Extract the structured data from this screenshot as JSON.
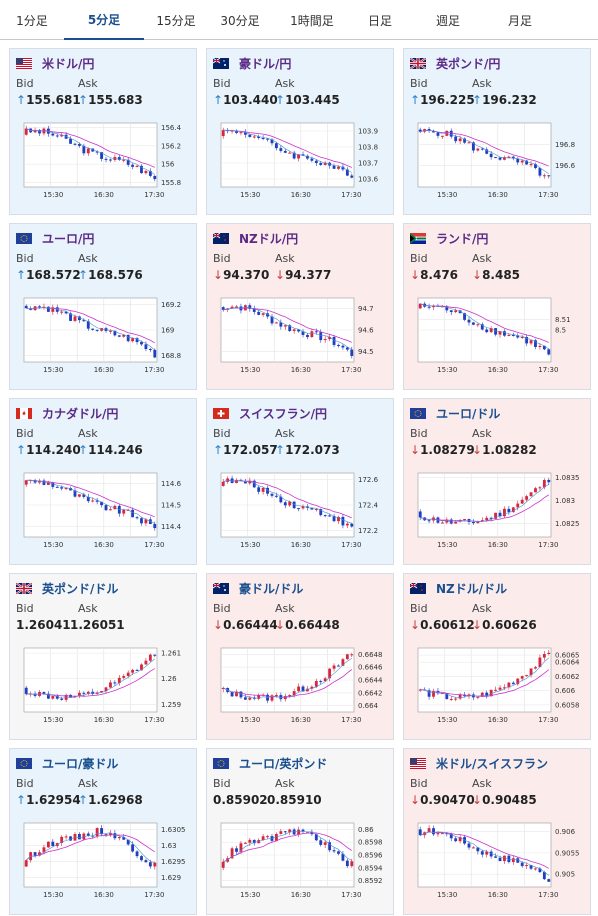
{
  "tabs": [
    {
      "label": "1分足",
      "active": false
    },
    {
      "label": "5分足",
      "active": true
    },
    {
      "label": "15分足",
      "active": false
    },
    {
      "label": "30分足",
      "active": false
    },
    {
      "label": "1時間足",
      "active": false
    },
    {
      "label": "日足",
      "active": false
    },
    {
      "label": "週足",
      "active": false
    },
    {
      "label": "月足",
      "active": false
    }
  ],
  "labels": {
    "bid": "Bid",
    "ask": "Ask"
  },
  "colors": {
    "up_bg": "#e8f3fb",
    "down_bg": "#fbeceb",
    "up_arrow": "#2a7fc9",
    "down_arrow": "#c93a3a",
    "bull_candle": "#d7263d",
    "bear_candle": "#1f3fbf",
    "ma_line": "#cc33cc"
  },
  "cards": [
    {
      "name": "米ドル/円",
      "flag": "us",
      "title_color": "purple",
      "trend": "up",
      "bid": "155.681",
      "ask": "155.683",
      "chart": {
        "x_ticks": [
          "15:30",
          "16:30",
          "17:30"
        ],
        "y_ticks": [
          "156.4",
          "156.2",
          "156",
          "155.8"
        ],
        "ylim": [
          155.75,
          156.45
        ],
        "shape": "down"
      }
    },
    {
      "name": "豪ドル/円",
      "flag": "au",
      "title_color": "purple",
      "trend": "up",
      "bid": "103.440",
      "ask": "103.445",
      "chart": {
        "x_ticks": [
          "15:30",
          "16:30",
          "17:30"
        ],
        "y_ticks": [
          "103.9",
          "103.8",
          "103.7",
          "103.6"
        ],
        "ylim": [
          103.55,
          103.95
        ],
        "shape": "down"
      }
    },
    {
      "name": "英ポンド/円",
      "flag": "gb",
      "title_color": "purple",
      "trend": "up",
      "bid": "196.225",
      "ask": "196.232",
      "chart": {
        "x_ticks": [
          "15:30",
          "16:30",
          "17:30"
        ],
        "y_ticks": [
          "196.8",
          "196.6"
        ],
        "ylim": [
          196.4,
          197.0
        ],
        "shape": "down"
      }
    },
    {
      "name": "ユーロ/円",
      "flag": "eu",
      "title_color": "purple",
      "trend": "up",
      "bid": "168.572",
      "ask": "168.576",
      "chart": {
        "x_ticks": [
          "15:30",
          "16:30",
          "17:30"
        ],
        "y_ticks": [
          "169.2",
          "169",
          "168.8"
        ],
        "ylim": [
          168.75,
          169.25
        ],
        "shape": "down"
      }
    },
    {
      "name": "NZドル/円",
      "flag": "nz",
      "title_color": "purple",
      "trend": "down",
      "bid": "94.370",
      "ask": "94.377",
      "chart": {
        "x_ticks": [
          "15:30",
          "16:30",
          "17:30"
        ],
        "y_ticks": [
          "94.7",
          "94.6",
          "94.5"
        ],
        "ylim": [
          94.45,
          94.75
        ],
        "shape": "down"
      }
    },
    {
      "name": "ランド/円",
      "flag": "za",
      "title_color": "purple",
      "trend": "down",
      "bid": "8.476",
      "ask": "8.485",
      "chart": {
        "x_ticks": [
          "15:30",
          "16:30",
          "17:30"
        ],
        "y_ticks": [
          "8.51",
          "8.5"
        ],
        "ylim": [
          8.47,
          8.53
        ],
        "shape": "down"
      }
    },
    {
      "name": "カナダドル/円",
      "flag": "ca",
      "title_color": "purple",
      "trend": "up",
      "bid": "114.240",
      "ask": "114.246",
      "chart": {
        "x_ticks": [
          "15:30",
          "16:30",
          "17:30"
        ],
        "y_ticks": [
          "114.6",
          "114.5",
          "114.4"
        ],
        "ylim": [
          114.35,
          114.65
        ],
        "shape": "down"
      }
    },
    {
      "name": "スイスフラン/円",
      "flag": "ch",
      "title_color": "purple",
      "trend": "up",
      "bid": "172.057",
      "ask": "172.073",
      "chart": {
        "x_ticks": [
          "15:30",
          "16:30",
          "17:30"
        ],
        "y_ticks": [
          "172.6",
          "172.4",
          "172.2"
        ],
        "ylim": [
          172.15,
          172.65
        ],
        "shape": "down"
      }
    },
    {
      "name": "ユーロ/ドル",
      "flag": "eu",
      "title_color": "blue",
      "trend": "down",
      "bid": "1.08279",
      "ask": "1.08282",
      "chart": {
        "x_ticks": [
          "15:30",
          "16:30",
          "17:30"
        ],
        "y_ticks": [
          "1.0835",
          "1.083",
          "1.0825"
        ],
        "ylim": [
          1.0822,
          1.0836
        ],
        "shape": "up"
      }
    },
    {
      "name": "英ポンド/ドル",
      "flag": "gb",
      "title_color": "blue",
      "trend": "flat",
      "bid": "1.26041",
      "ask": "1.26051",
      "chart": {
        "x_ticks": [
          "15:30",
          "16:30",
          "17:30"
        ],
        "y_ticks": [
          "1.261",
          "1.26",
          "1.259"
        ],
        "ylim": [
          1.2587,
          1.2612
        ],
        "shape": "up"
      }
    },
    {
      "name": "豪ドル/ドル",
      "flag": "au",
      "title_color": "blue",
      "trend": "down",
      "bid": "0.66444",
      "ask": "0.66448",
      "chart": {
        "x_ticks": [
          "15:30",
          "16:30",
          "17:30"
        ],
        "y_ticks": [
          "0.6648",
          "0.6646",
          "0.6644",
          "0.6642",
          "0.664"
        ],
        "ylim": [
          0.6639,
          0.6649
        ],
        "shape": "up"
      }
    },
    {
      "name": "NZドル/ドル",
      "flag": "nz",
      "title_color": "blue",
      "trend": "down",
      "bid": "0.60612",
      "ask": "0.60626",
      "chart": {
        "x_ticks": [
          "15:30",
          "16:30",
          "17:30"
        ],
        "y_ticks": [
          "0.6065",
          "0.6064",
          "0.6062",
          "0.606",
          "0.6058"
        ],
        "ylim": [
          0.6057,
          0.6066
        ],
        "shape": "up"
      }
    },
    {
      "name": "ユーロ/豪ドル",
      "flag": "eu",
      "title_color": "blue",
      "trend": "up",
      "bid": "1.62954",
      "ask": "1.62968",
      "chart": {
        "x_ticks": [
          "15:30",
          "16:30",
          "17:30"
        ],
        "y_ticks": [
          "1.6305",
          "1.63",
          "1.6295",
          "1.629"
        ],
        "ylim": [
          1.6287,
          1.6307
        ],
        "shape": "updown"
      }
    },
    {
      "name": "ユーロ/英ポンド",
      "flag": "eu",
      "title_color": "blue",
      "trend": "flat",
      "bid": "0.85902",
      "ask": "0.85910",
      "chart": {
        "x_ticks": [
          "15:30",
          "16:30",
          "17:30"
        ],
        "y_ticks": [
          "0.86",
          "0.8598",
          "0.8596",
          "0.8594",
          "0.8592"
        ],
        "ylim": [
          0.8591,
          0.8601
        ],
        "shape": "updown"
      }
    },
    {
      "name": "米ドル/スイスフラン",
      "flag": "us",
      "title_color": "blue",
      "trend": "down",
      "bid": "0.90470",
      "ask": "0.90485",
      "chart": {
        "x_ticks": [
          "15:30",
          "16:30",
          "17:30"
        ],
        "y_ticks": [
          "0.906",
          "0.9055",
          "0.905"
        ],
        "ylim": [
          0.9047,
          0.9062
        ],
        "shape": "down"
      }
    }
  ]
}
